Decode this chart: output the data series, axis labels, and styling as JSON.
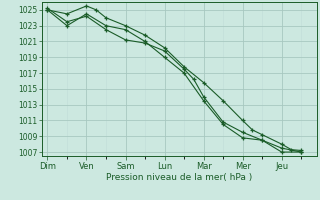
{
  "xlabel": "Pression niveau de la mer( hPa )",
  "background_color": "#cce8e0",
  "grid_color_major": "#a8c8c0",
  "grid_color_minor": "#c0dcd8",
  "line_color": "#1a5c28",
  "ylim": [
    1006.5,
    1026.0
  ],
  "yticks": [
    1007,
    1009,
    1011,
    1013,
    1015,
    1017,
    1019,
    1021,
    1023,
    1025
  ],
  "day_labels": [
    "Dim",
    "Ven",
    "Sam",
    "Lun",
    "Mar",
    "Mer",
    "Jeu"
  ],
  "day_positions": [
    0,
    2,
    4,
    6,
    8,
    10,
    12
  ],
  "xlim": [
    -0.3,
    13.8
  ],
  "line1_x": [
    0,
    1,
    2,
    2.5,
    3,
    4,
    5,
    6,
    7,
    8,
    9,
    10,
    10.5,
    11,
    12,
    12.5,
    13
  ],
  "line1_y": [
    1025,
    1024.5,
    1025.5,
    1025.0,
    1024.0,
    1023.0,
    1021.8,
    1020.2,
    1017.8,
    1015.8,
    1013.5,
    1011.0,
    1009.8,
    1009.2,
    1008.0,
    1007.3,
    1007.2
  ],
  "line2_x": [
    0,
    1,
    2,
    3,
    4,
    5,
    6,
    7,
    7.5,
    8,
    9,
    10,
    11,
    12,
    13
  ],
  "line2_y": [
    1025.2,
    1023.5,
    1024.2,
    1022.5,
    1021.2,
    1020.8,
    1019.8,
    1017.5,
    1016.2,
    1014.0,
    1010.8,
    1009.5,
    1008.5,
    1007.5,
    1007.0
  ],
  "line3_x": [
    0,
    1,
    2,
    3,
    4,
    5,
    6,
    7,
    8,
    9,
    10,
    11,
    12,
    13
  ],
  "line3_y": [
    1025.0,
    1023.0,
    1024.5,
    1023.0,
    1022.5,
    1021.0,
    1019.0,
    1017.0,
    1013.5,
    1010.5,
    1008.8,
    1008.5,
    1007.0,
    1007.0
  ]
}
